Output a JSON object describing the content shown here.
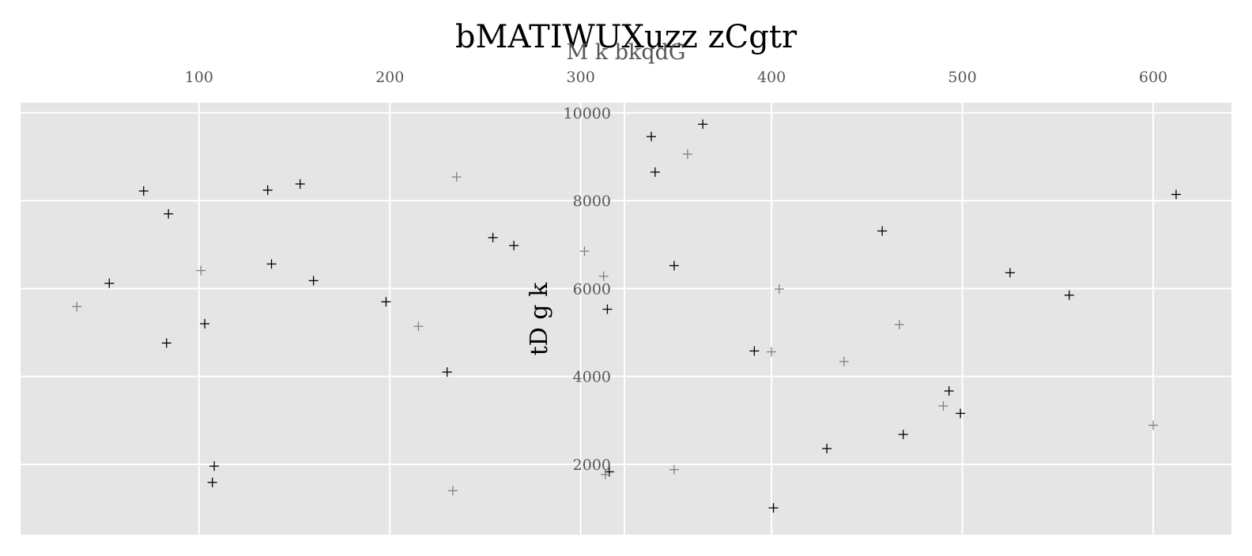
{
  "chart_data": {
    "type": "scatter",
    "title": "bMATIWUXuzz zCgtr",
    "xlabel": "M k bkqdG",
    "ylabel": "tD g k",
    "xlim": [
      6.5,
      641
    ],
    "ylim": [
      400,
      10230
    ],
    "x_ticks": [
      100,
      200,
      300,
      400,
      500,
      600
    ],
    "y_ticks": [
      2000,
      4000,
      6000,
      8000,
      10000
    ],
    "x_tick_labels": [
      "100",
      "200",
      "300",
      "400",
      "500",
      "600"
    ],
    "y_tick_labels": [
      "2000",
      "4000",
      "6000",
      "8000",
      "10000"
    ],
    "x_axis_position": "top",
    "y_axis_position": "center",
    "grid": true,
    "marker": "+",
    "colors": {
      "background": "#e5e5e5",
      "grid": "#ffffff",
      "series_dark": "#000000",
      "series_light": "#808080"
    },
    "series": [
      {
        "color": "#000000",
        "points": [
          [
            71,
            8220
          ],
          [
            84,
            7700
          ],
          [
            53,
            6120
          ],
          [
            103,
            5200
          ],
          [
            83,
            4760
          ],
          [
            108,
            1960
          ],
          [
            107,
            1590
          ],
          [
            136,
            8240
          ],
          [
            153,
            8380
          ],
          [
            138,
            6560
          ],
          [
            160,
            6180
          ],
          [
            198,
            5700
          ],
          [
            230,
            4100
          ],
          [
            254,
            7160
          ],
          [
            265,
            6980
          ],
          [
            314,
            5530
          ],
          [
            315,
            1830
          ],
          [
            337,
            9460
          ],
          [
            339,
            8650
          ],
          [
            349,
            6520
          ],
          [
            364,
            9740
          ],
          [
            391,
            4580
          ],
          [
            401,
            1010
          ],
          [
            429,
            2360
          ],
          [
            458,
            7310
          ],
          [
            469,
            2680
          ],
          [
            493,
            3670
          ],
          [
            499,
            3160
          ],
          [
            525,
            6360
          ],
          [
            556,
            5850
          ],
          [
            612,
            8140
          ]
        ]
      },
      {
        "color": "#808080",
        "points": [
          [
            36,
            5590
          ],
          [
            101,
            6410
          ],
          [
            215,
            5140
          ],
          [
            235,
            8540
          ],
          [
            233,
            1400
          ],
          [
            302,
            6850
          ],
          [
            312,
            6280
          ],
          [
            313,
            1770
          ],
          [
            349,
            1880
          ],
          [
            356,
            9060
          ],
          [
            400,
            4560
          ],
          [
            404,
            5990
          ],
          [
            438,
            4340
          ],
          [
            467,
            5180
          ],
          [
            490,
            3330
          ],
          [
            600,
            2890
          ]
        ]
      }
    ]
  }
}
